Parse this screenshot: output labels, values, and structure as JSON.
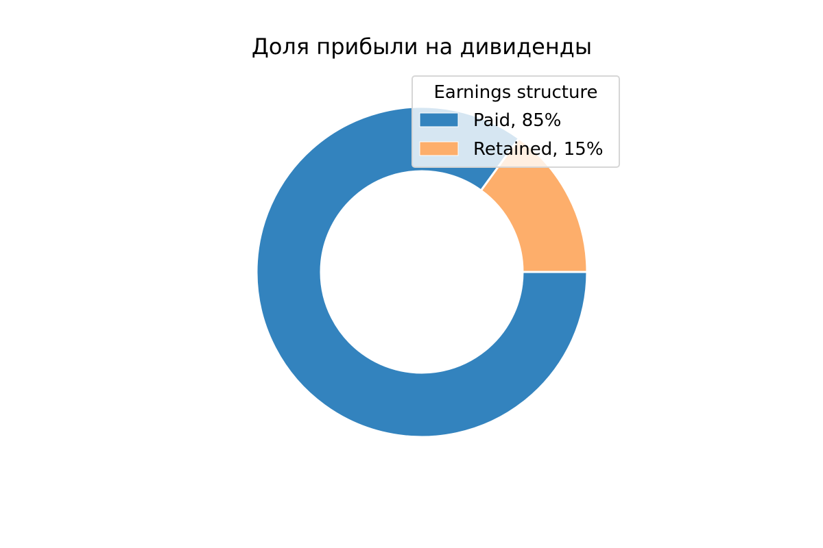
{
  "chart_data": {
    "type": "pie",
    "title": "Доля прибыли на дивиденды",
    "donut": true,
    "start_angle": "0° (3 o'clock), clockwise",
    "slices": [
      {
        "label": "Paid",
        "value": 85,
        "color": "#3383BE"
      },
      {
        "label": "Retained",
        "value": 15,
        "color": "#FDAE6B"
      }
    ],
    "legend": {
      "title": "Earnings structure",
      "placement": "top-right",
      "entries": [
        "Paid, 85%",
        "Retained, 15%"
      ]
    }
  }
}
